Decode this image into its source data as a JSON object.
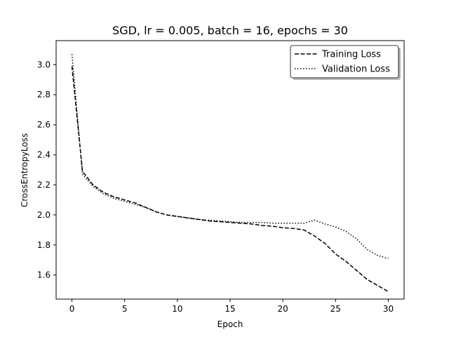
{
  "chart_data": {
    "type": "line",
    "title": "SGD, lr = 0.005, batch = 16, epochs = 30",
    "xlabel": "Epoch",
    "ylabel": "CrossEntropyLoss",
    "xlim": [
      -1.5,
      31.5
    ],
    "ylim": [
      1.44,
      3.16
    ],
    "xticks": [
      0,
      5,
      10,
      15,
      20,
      25,
      30
    ],
    "yticks": [
      1.6,
      1.8,
      2.0,
      2.2,
      2.4,
      2.6,
      2.8,
      3.0
    ],
    "grid": false,
    "legend_position": "top-right",
    "x": [
      0,
      1,
      2,
      3,
      4,
      5,
      6,
      7,
      8,
      9,
      10,
      11,
      12,
      13,
      14,
      15,
      16,
      17,
      18,
      19,
      20,
      21,
      22,
      23,
      24,
      25,
      26,
      27,
      28,
      29,
      30
    ],
    "series": [
      {
        "name": "Training Loss",
        "style": "dashed",
        "color": "#000000",
        "values": [
          2.99,
          2.29,
          2.2,
          2.15,
          2.12,
          2.1,
          2.08,
          2.05,
          2.02,
          2.0,
          1.99,
          1.98,
          1.97,
          1.96,
          1.955,
          1.95,
          1.945,
          1.94,
          1.93,
          1.925,
          1.915,
          1.91,
          1.9,
          1.86,
          1.81,
          1.74,
          1.69,
          1.63,
          1.57,
          1.53,
          1.49
        ]
      },
      {
        "name": "Validation Loss",
        "style": "dotted",
        "color": "#000000",
        "values": [
          3.07,
          2.27,
          2.19,
          2.14,
          2.11,
          2.09,
          2.07,
          2.05,
          2.02,
          2.0,
          1.99,
          1.98,
          1.97,
          1.965,
          1.96,
          1.955,
          1.95,
          1.95,
          1.95,
          1.945,
          1.945,
          1.945,
          1.945,
          1.965,
          1.94,
          1.92,
          1.89,
          1.84,
          1.77,
          1.73,
          1.71
        ]
      }
    ]
  }
}
